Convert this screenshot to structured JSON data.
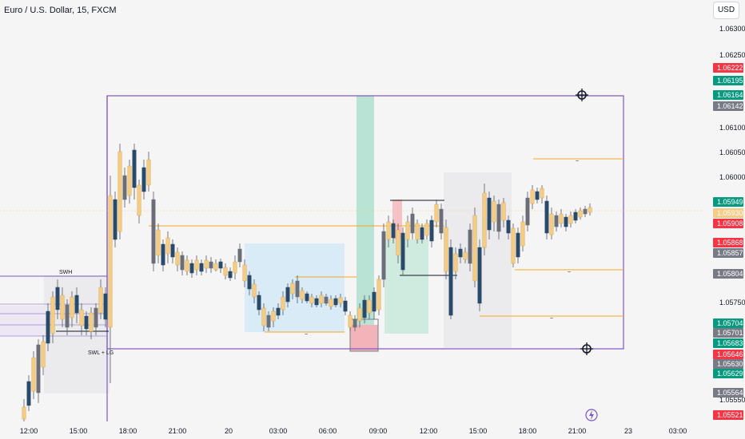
{
  "header": {
    "symbol_title": "Euro / U.S. Dollar, 15, FXCM",
    "currency_button": "USD"
  },
  "price_axis": {
    "ticks": [
      "1.06300",
      "1.06250",
      "1.06100",
      "1.06050",
      "1.06000",
      "1.05750",
      "1.05550"
    ]
  },
  "price_tags": [
    {
      "label": "1.06222",
      "color": "#f23645"
    },
    {
      "label": "1.06195",
      "color": "#089981"
    },
    {
      "label": "1.06164",
      "color": "#089981"
    },
    {
      "label": "1.06142",
      "color": "#787b86"
    },
    {
      "label": "1.05949",
      "color": "#089981"
    },
    {
      "label": "1.05930",
      "color": "#f5cc85"
    },
    {
      "label": "1.05908",
      "color": "#f23645"
    },
    {
      "label": "1.05868",
      "color": "#f23645"
    },
    {
      "label": "1.05857",
      "color": "#787b86"
    },
    {
      "label": "1.05804",
      "color": "#787b86"
    },
    {
      "label": "1.05704",
      "color": "#089981"
    },
    {
      "label": "1.05701",
      "color": "#787b86"
    },
    {
      "label": "1.05683",
      "color": "#089981"
    },
    {
      "label": "1.05646",
      "color": "#f23645"
    },
    {
      "label": "1.05630",
      "color": "#787b86"
    },
    {
      "label": "1.05629",
      "color": "#089981"
    },
    {
      "label": "1.05564",
      "color": "#787b86"
    },
    {
      "label": "1.05521",
      "color": "#f23645"
    }
  ],
  "time_axis": {
    "ticks": [
      "12:00",
      "15:00",
      "18:00",
      "21:00",
      "20",
      "03:00",
      "06:00",
      "09:00",
      "12:00",
      "15:00",
      "18:00",
      "21:00",
      "23",
      "03:00"
    ]
  },
  "annotations": {
    "swh": "SWH",
    "swl": "SWL + LG",
    "tilde": "~"
  },
  "colors": {
    "candle_body": "#f5cc85",
    "candle_alt": "#2a4a6b",
    "candle_gray": "#6b6e78",
    "box_border": "#7e57c2",
    "level_line": "#f5a623",
    "long_zone": "#8ed1b8",
    "short_zone": "#f6a5aa",
    "fvg_zone": "#bfdff5"
  }
}
